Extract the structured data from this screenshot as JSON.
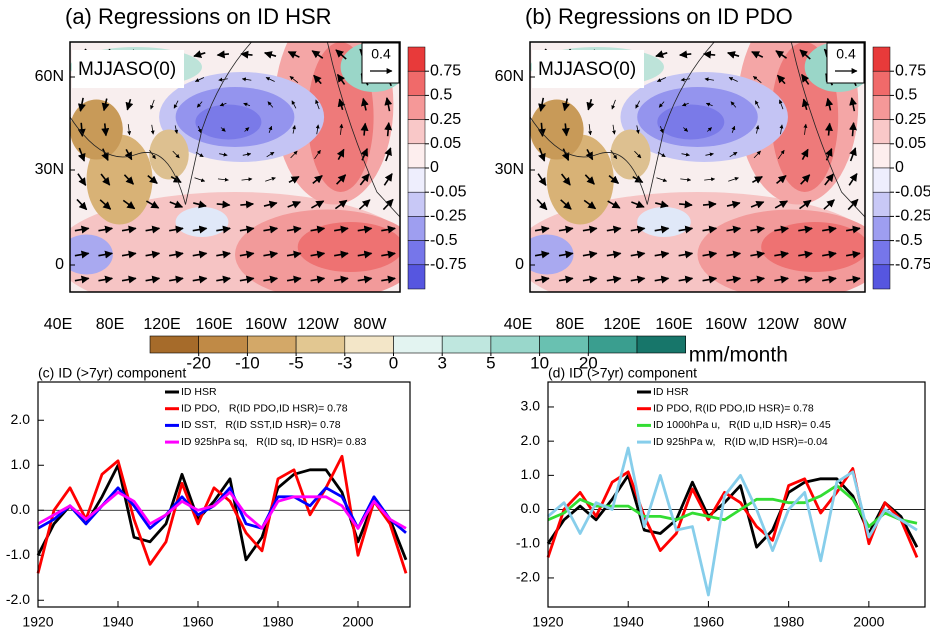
{
  "chart_data": [
    {
      "type": "map",
      "title": "(a) Regressions on ID HSR",
      "season": "MJJASO(0)",
      "vector_ref": 0.4,
      "lat_labels": [
        "60N",
        "30N",
        "0"
      ],
      "lon_labels": [
        "40E",
        "80E",
        "120E",
        "160E",
        "160W",
        "120W",
        "80W"
      ],
      "colorbar": {
        "ticks": [
          0.75,
          0.5,
          0.25,
          0.05,
          0,
          -0.05,
          -0.25,
          -0.5,
          -0.75
        ],
        "colors": [
          "#e83a3a",
          "#f06a6a",
          "#f59898",
          "#f9c8c8",
          "#fdeeee",
          "#eeeefd",
          "#c8c8f6",
          "#9e9ef0",
          "#7676ea",
          "#5656e0"
        ]
      }
    },
    {
      "type": "map",
      "title": "(b) Regressions on ID PDO",
      "season": "MJJASO(0)",
      "vector_ref": 0.4,
      "lat_labels": [
        "60N",
        "30N",
        "0"
      ],
      "lon_labels": [
        "40E",
        "80E",
        "120E",
        "160E",
        "160W",
        "120W",
        "80W"
      ],
      "colorbar": {
        "ticks": [
          0.75,
          0.5,
          0.25,
          0.05,
          0,
          -0.05,
          -0.25,
          -0.5,
          -0.75
        ],
        "colors": [
          "#e83a3a",
          "#f06a6a",
          "#f59898",
          "#f9c8c8",
          "#fdeeee",
          "#eeeefd",
          "#c8c8f6",
          "#9e9ef0",
          "#7676ea",
          "#5656e0"
        ]
      }
    },
    {
      "type": "colorbar",
      "label": "mm/month",
      "ticks": [
        -20,
        -10,
        -5,
        -3,
        0,
        3,
        5,
        10,
        20
      ],
      "colors": [
        "#a66b2a",
        "#c08a46",
        "#d3a868",
        "#e2c791",
        "#f3e6c8",
        "#e3f4f1",
        "#bfe7df",
        "#99d7cb",
        "#69c1b1",
        "#3a9e8f",
        "#17766a"
      ]
    },
    {
      "type": "line",
      "title": "(c) ID (>7yr) component",
      "x": [
        1920,
        1924,
        1928,
        1932,
        1936,
        1940,
        1944,
        1948,
        1952,
        1956,
        1960,
        1964,
        1968,
        1972,
        1976,
        1980,
        1984,
        1988,
        1992,
        1996,
        2000,
        2004,
        2008,
        2012
      ],
      "xlim": [
        1920,
        2013
      ],
      "xticks": [
        1920,
        1940,
        1960,
        1980,
        2000
      ],
      "ylim": [
        -2.15,
        2.85
      ],
      "yticks": [
        {
          "value": -2,
          "label": "-2.0"
        },
        {
          "value": -1,
          "label": "-1.0"
        },
        {
          "value": 0,
          "label": "0.0"
        },
        {
          "value": 1,
          "label": "1.0"
        },
        {
          "value": 2,
          "label": "2.0"
        }
      ],
      "series": [
        {
          "name": "ID HSR",
          "color": "#000000",
          "values": [
            -1.0,
            -0.3,
            0.1,
            -0.3,
            0.3,
            1.0,
            -0.6,
            -0.7,
            -0.3,
            0.8,
            -0.2,
            0.2,
            0.7,
            -1.1,
            -0.6,
            0.5,
            0.8,
            0.9,
            0.9,
            0.4,
            -0.7,
            0.2,
            -0.2,
            -1.1
          ]
        },
        {
          "name": "ID PDO,   R(ID PDO,ID HSR)= 0.78",
          "color": "#ff0000",
          "values": [
            -1.4,
            0.0,
            0.5,
            -0.2,
            0.8,
            1.1,
            -0.2,
            -1.2,
            -0.7,
            0.6,
            -0.3,
            0.5,
            0.2,
            -0.5,
            -0.9,
            0.7,
            0.9,
            -0.1,
            0.5,
            1.2,
            -1.0,
            0.2,
            -0.3,
            -1.4
          ]
        },
        {
          "name": "ID SST,   R(ID SST,ID HSR)= 0.78",
          "color": "#0000ff",
          "values": [
            -0.4,
            -0.2,
            0.1,
            -0.3,
            0.1,
            0.5,
            0.1,
            -0.4,
            -0.1,
            0.3,
            -0.1,
            0.1,
            0.5,
            -0.3,
            -0.4,
            0.3,
            0.3,
            0.1,
            0.5,
            0.3,
            -0.4,
            0.3,
            -0.2,
            -0.5
          ]
        },
        {
          "name": "ID 925hPa sq,   R(ID sq, ID HSR)= 0.83",
          "color": "#ff00ff",
          "values": [
            -0.3,
            -0.1,
            0.1,
            -0.2,
            0.1,
            0.4,
            0.2,
            -0.3,
            -0.1,
            0.2,
            0.0,
            0.1,
            0.4,
            -0.1,
            -0.4,
            0.2,
            0.3,
            0.3,
            0.3,
            0.1,
            -0.4,
            0.2,
            -0.2,
            -0.4
          ]
        }
      ]
    },
    {
      "type": "line",
      "title": "(d) ID (>7yr) component",
      "x": [
        1920,
        1924,
        1928,
        1932,
        1936,
        1940,
        1944,
        1948,
        1952,
        1956,
        1960,
        1964,
        1968,
        1972,
        1976,
        1980,
        1984,
        1988,
        1992,
        1996,
        2000,
        2004,
        2008,
        2012
      ],
      "xlim": [
        1920,
        2014
      ],
      "xticks": [
        1920,
        1940,
        1960,
        1980,
        2000
      ],
      "ylim": [
        -2.85,
        3.73
      ],
      "yticks": [
        {
          "value": -2,
          "label": "-2.0"
        },
        {
          "value": -1,
          "label": "-1.0"
        },
        {
          "value": 0,
          "label": "0.0"
        },
        {
          "value": 1,
          "label": "1.0"
        },
        {
          "value": 2,
          "label": "2.0"
        },
        {
          "value": 3,
          "label": "3.0"
        }
      ],
      "series": [
        {
          "name": "ID HSR",
          "color": "#000000",
          "values": [
            -1.0,
            -0.3,
            0.1,
            -0.3,
            0.3,
            1.0,
            -0.6,
            -0.7,
            -0.3,
            0.8,
            -0.2,
            0.2,
            0.7,
            -1.1,
            -0.6,
            0.5,
            0.8,
            0.9,
            0.9,
            0.4,
            -0.7,
            0.2,
            -0.2,
            -1.1
          ]
        },
        {
          "name": "ID PDO, R(ID PDO,ID HSR)= 0.78",
          "color": "#ff0000",
          "values": [
            -1.4,
            0.0,
            0.5,
            -0.2,
            0.8,
            1.1,
            -0.2,
            -1.2,
            -0.7,
            0.6,
            -0.3,
            0.5,
            0.2,
            -0.5,
            -0.9,
            0.7,
            0.9,
            -0.1,
            0.5,
            1.2,
            -1.0,
            0.2,
            -0.3,
            -1.4
          ]
        },
        {
          "name": "ID 1000hPa u,   R(ID u,ID HSR)= 0.45",
          "color": "#33dd33",
          "values": [
            -0.3,
            -0.1,
            0.3,
            0.1,
            0.1,
            0.1,
            -0.2,
            -0.2,
            -0.3,
            -0.1,
            -0.2,
            -0.3,
            0.0,
            0.3,
            0.3,
            0.2,
            0.2,
            0.4,
            0.7,
            0.3,
            -0.5,
            -0.1,
            -0.3,
            -0.4
          ]
        },
        {
          "name": "ID 925hPa w,   R(ID w,ID HSR)=-0.04",
          "color": "#87ceeb",
          "values": [
            -0.2,
            0.2,
            -0.7,
            0.2,
            0.0,
            1.8,
            -0.5,
            1.0,
            -0.6,
            -0.5,
            -2.5,
            0.4,
            1.0,
            0.0,
            -1.2,
            0.0,
            0.5,
            -1.5,
            0.8,
            1.1,
            -0.8,
            0.0,
            -0.3,
            -0.6
          ]
        }
      ]
    }
  ]
}
